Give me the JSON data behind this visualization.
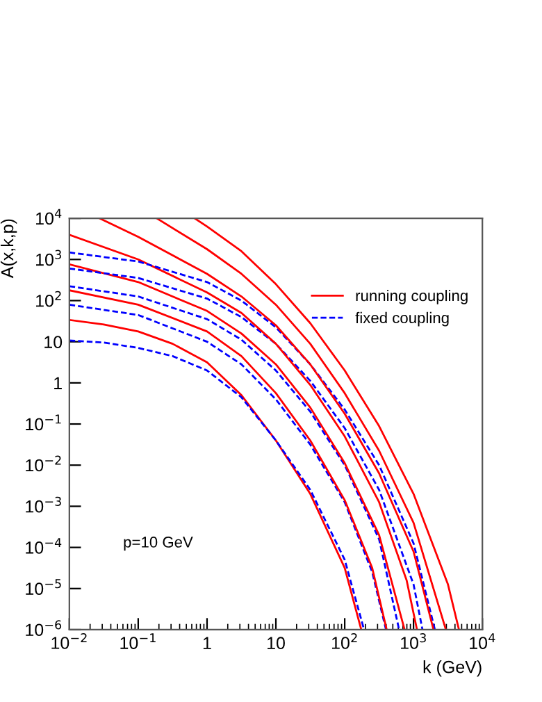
{
  "chart_data": {
    "type": "line",
    "xlabel": "k (GeV)",
    "ylabel": "A(x,k,p)",
    "log": "xy",
    "xlim": [
      0.01,
      10000
    ],
    "ylim": [
      1e-06,
      10000
    ],
    "xticks": [
      {
        "value": 0.01,
        "label": "10$^{−2}$"
      },
      {
        "value": 0.1,
        "label": "10$^{−1}$"
      },
      1,
      10,
      {
        "value": 100,
        "label": "10$^{2}$"
      },
      {
        "value": 1000,
        "label": "10$^{3}$"
      },
      {
        "value": 10000,
        "label": "10$^{4}$"
      }
    ],
    "yticks": [
      {
        "value": 1e-06,
        "label": "10$^{−6}$"
      },
      {
        "value": 1e-05,
        "label": "10$^{−5}$"
      },
      {
        "value": 0.0001,
        "label": "10$^{−4}$"
      },
      {
        "value": 0.001,
        "label": "10$^{−3}$"
      },
      {
        "value": 0.01,
        "label": "10$^{−2}$"
      },
      {
        "value": 0.1,
        "label": "10$^{−1}$"
      },
      1,
      10,
      {
        "value": 100,
        "label": "10$^{2}$"
      },
      {
        "value": 1000,
        "label": "10$^{3}$"
      },
      {
        "value": 10000,
        "label": "10$^{4}$"
      }
    ],
    "grid": false,
    "legend": "top right",
    "marker": "none",
    "annotations": [
      "p=10 GeV"
    ],
    "series": [
      {
        "name": "running coupling",
        "color": "#ff0000",
        "line_style": "solid",
        "x": [
          0.01,
          0.0316,
          0.1,
          0.316,
          1,
          3.16,
          10,
          31.6,
          100,
          174
        ],
        "values": [
          33.9,
          26.3,
          17.8,
          8.91,
          3.16,
          0.501,
          0.0398,
          0.002,
          3.16e-05,
          1e-06
        ]
      },
      {
        "name": "fixed coupling",
        "color": "#0000ff",
        "line_style": "dashed",
        "x": [
          0.01,
          0.0316,
          0.1,
          0.316,
          1,
          3.16,
          10,
          31.6,
          100,
          191
        ],
        "values": [
          10.7,
          9.55,
          7.08,
          4.47,
          2.0,
          0.447,
          0.0398,
          0.00251,
          5.01e-05,
          1e-06
        ]
      },
      {
        "color": "#0000ff",
        "line_style": "dashed",
        "x": [
          0.01,
          0.1,
          1,
          3.16,
          10,
          31.6,
          100,
          251,
          398
        ],
        "values": [
          79.4,
          44.7,
          10,
          2.82,
          0.398,
          0.0316,
          0.00126,
          2.51e-05,
          1e-06
        ]
      },
      {
        "color": "#ff0000",
        "line_style": "solid",
        "x": [
          0.01,
          0.1,
          1,
          3.16,
          10,
          31.6,
          100,
          251,
          407
        ],
        "values": [
          178,
          79.4,
          17.8,
          4.47,
          0.562,
          0.0398,
          0.00141,
          3.16e-05,
          1e-06
        ]
      },
      {
        "color": "#0000ff",
        "line_style": "dashed",
        "x": [
          0.01,
          0.1,
          1,
          3.16,
          10,
          31.6,
          100,
          316,
          617
        ],
        "values": [
          224,
          126,
          35.5,
          11.2,
          2.0,
          0.2,
          0.01,
          0.000158,
          1e-06
        ]
      },
      {
        "color": "#ff0000",
        "line_style": "solid",
        "x": [
          0.01,
          0.1,
          1,
          3.16,
          10,
          31.6,
          100,
          316,
          741
        ],
        "values": [
          759,
          282,
          56.2,
          15.8,
          2.82,
          0.251,
          0.0112,
          0.0002,
          1e-06
        ]
      },
      {
        "color": "#0000ff",
        "line_style": "dashed",
        "x": [
          0.01,
          0.1,
          1,
          3.16,
          10,
          31.6,
          100,
          316,
          1000,
          1349
        ],
        "values": [
          603,
          355,
          112,
          39.8,
          8.91,
          1.12,
          0.0794,
          0.00251,
          1.26e-05,
          1e-06
        ]
      },
      {
        "color": "#ff0000",
        "line_style": "solid",
        "x": [
          0.01,
          0.1,
          1,
          3.16,
          10,
          31.6,
          100,
          316,
          794,
          1122
        ],
        "values": [
          3981,
          1000,
          158,
          50.1,
          8.91,
          0.891,
          0.0501,
          0.00126,
          1.58e-05,
          1e-06
        ]
      },
      {
        "color": "#0000ff",
        "line_style": "dashed",
        "x": [
          0.01,
          0.1,
          1,
          3.16,
          10,
          31.6,
          100,
          316,
          1000,
          2042
        ],
        "values": [
          1479,
          891,
          282,
          100,
          22.4,
          2.82,
          0.224,
          0.01,
          0.000126,
          1e-06
        ]
      },
      {
        "color": "#ff0000",
        "line_style": "solid",
        "x": [
          0.0275,
          0.1,
          1,
          3.16,
          10,
          31.6,
          100,
          316,
          1000,
          1950
        ],
        "values": [
          10000,
          3548,
          447,
          126,
          25.1,
          2.82,
          0.178,
          0.00631,
          7.94e-05,
          1e-06
        ]
      },
      {
        "color": "#ff0000",
        "line_style": "solid",
        "x": [
          0.186,
          1,
          3.16,
          10,
          31.6,
          100,
          316,
          1000,
          2951
        ],
        "values": [
          10000,
          1778,
          447,
          79.4,
          8.91,
          0.562,
          0.0224,
          0.000398,
          1e-06
        ]
      },
      {
        "color": "#ff0000",
        "line_style": "solid",
        "x": [
          0.661,
          1,
          3.16,
          10,
          31.6,
          100,
          316,
          1000,
          3162,
          4571
        ],
        "values": [
          10000,
          6310,
          1585,
          251,
          28.2,
          2.0,
          0.0891,
          0.002,
          1.26e-05,
          1e-06
        ]
      }
    ]
  }
}
